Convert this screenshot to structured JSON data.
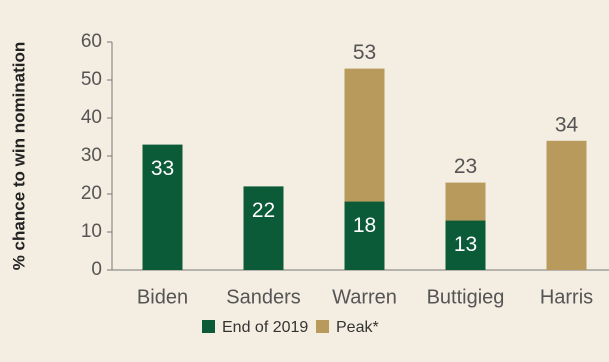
{
  "chart_data": {
    "type": "bar",
    "y_axis_label": "% chance to win nomination",
    "categories": [
      "Biden",
      "Sanders",
      "Warren",
      "Buttigieg",
      "Harris"
    ],
    "series": [
      {
        "name": "End of 2019",
        "color": "#0b5a38",
        "values": [
          33,
          22,
          18,
          13,
          null
        ]
      },
      {
        "name": "Peak*",
        "color": "#b89a5c",
        "values": [
          null,
          null,
          53,
          23,
          34
        ]
      }
    ],
    "ylim": [
      0,
      60
    ],
    "yticks": [
      0,
      10,
      20,
      30,
      40,
      50,
      60
    ],
    "grid": false
  }
}
